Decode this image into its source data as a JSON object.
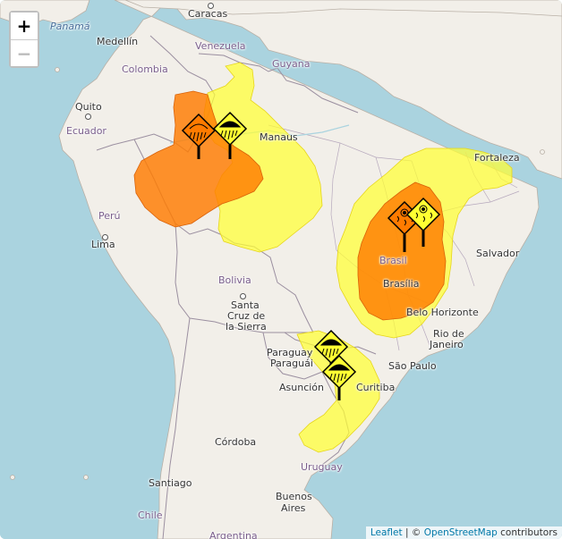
{
  "zoom": {
    "in_label": "+",
    "out_label": "−"
  },
  "attribution": {
    "leaflet": "Leaflet",
    "separator": " | © ",
    "osm": "OpenStreetMap",
    "suffix": " contributors"
  },
  "labels": {
    "caracas": "Caracas",
    "panama": "Panamá",
    "medellin": "Medellín",
    "venezuela": "Venezuela",
    "guyana": "Guyana",
    "colombia": "Colombia",
    "quito": "Quito",
    "ecuador": "Ecuador",
    "manaus": "Manaus",
    "fortaleza": "Fortaleza",
    "peru": "Perú",
    "lima": "Lima",
    "brasil": "Brasil",
    "brasilia": "Brasília",
    "salvador": "Salvador",
    "bolivia": "Bolivia",
    "santa": "Santa",
    "cruz_de": "Cruz de",
    "la_sierra": "la Sierra",
    "belo_horizonte": "Belo Horizonte",
    "rio": "Rio de",
    "janeiro": "Janeiro",
    "paraguay": "Paraguay",
    "paraguai": "Paraguái",
    "sao_paulo": "São Paulo",
    "asuncion": "Asunción",
    "curitiba": "Curitiba",
    "cordoba": "Córdoba",
    "uruguay": "Uruguay",
    "santiago": "Santiago",
    "buenos": "Buenos",
    "aires": "Aires",
    "chile": "Chile",
    "argentina": "Argentina"
  },
  "colors": {
    "ocean": "#aad3df",
    "land": "#f2efe9",
    "border": "#9b8fa0",
    "alert_yellow": "#ffff33",
    "alert_orange": "#ff7b00"
  },
  "alert_icons": [
    "rain-hazard-icon",
    "storm-hazard-icon",
    "heat-hazard-icon",
    "rain-hazard-icon",
    "storm-hazard-icon",
    "storm-hazard-icon"
  ]
}
